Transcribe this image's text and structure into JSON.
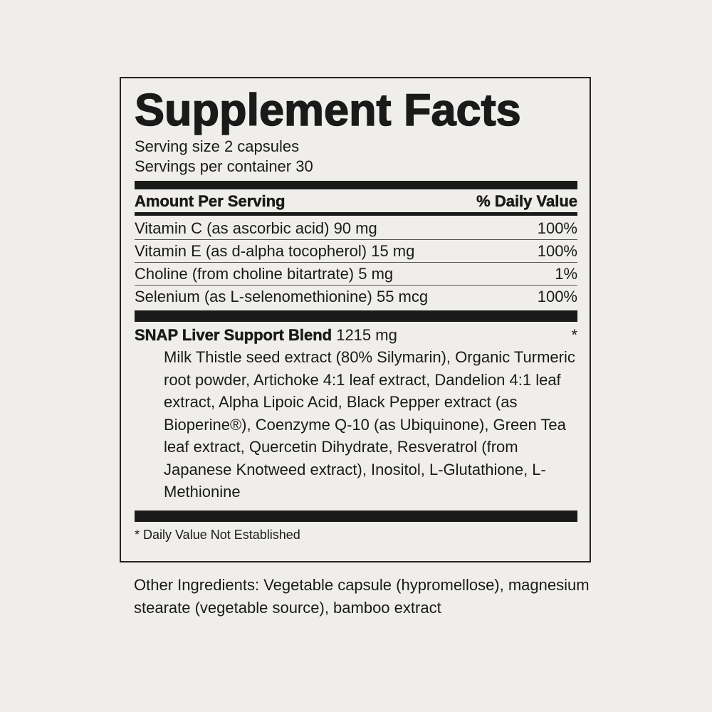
{
  "title": "Supplement Facts",
  "serving_size": "Serving size 2 capsules",
  "servings_per_container": "Servings per container 30",
  "header": {
    "amount": "Amount Per Serving",
    "dv": "% Daily Value"
  },
  "nutrients": [
    {
      "name": "Vitamin C (as ascorbic acid) 90 mg",
      "dv": "100%"
    },
    {
      "name": "Vitamin E (as d-alpha tocopherol) 15 mg",
      "dv": "100%"
    },
    {
      "name": "Choline (from choline bitartrate) 5 mg",
      "dv": "1%"
    },
    {
      "name": "Selenium (as L-selenomethionine) 55 mcg",
      "dv": "100%"
    }
  ],
  "blend": {
    "name": "SNAP Liver Support Blend",
    "amount": "1215 mg",
    "dv": "*",
    "ingredients": "Milk Thistle seed extract (80% Silymarin), Organic Turmeric root powder, Artichoke 4:1 leaf extract, Dandelion 4:1 leaf extract, Alpha Lipoic Acid, Black Pepper extract (as Bioperine®), Coenzyme Q-10 (as Ubiquinone), Green Tea leaf extract, Quercetin Dihydrate, Resveratrol (from Japanese Knotweed extract), Inositol, L-Glutathione, L-Methionine"
  },
  "footnote": "* Daily Value Not Established",
  "other_ingredients": "Other Ingredients: Vegetable capsule (hypromellose), magnesium stearate (vegetable source), bamboo extract"
}
